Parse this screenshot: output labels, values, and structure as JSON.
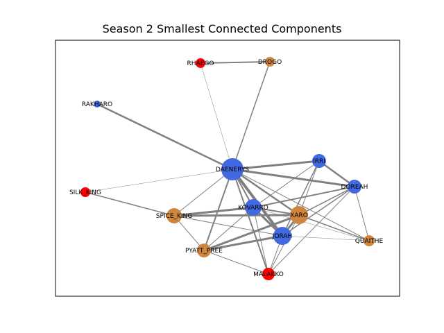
{
  "title": "Season 2 Smallest Connected Components",
  "colors": {
    "blue": "#4169e1",
    "orange": "#cd853f",
    "red": "#ff0000",
    "edge": "#808080",
    "frame": "#000000"
  },
  "chart_data": {
    "type": "network",
    "title": "Season 2 Smallest Connected Components",
    "nodes": [
      {
        "id": "DAENERYS",
        "label": "DAENERYS",
        "group": "blue",
        "size": 16
      },
      {
        "id": "RHAEGO",
        "label": "RHAEGO",
        "group": "red",
        "size": 7
      },
      {
        "id": "DROGO",
        "label": "DROGO",
        "group": "orange",
        "size": 7
      },
      {
        "id": "RAKHARO",
        "label": "RAKHARO",
        "group": "blue",
        "size": 5
      },
      {
        "id": "IRRI",
        "label": "IRRI",
        "group": "blue",
        "size": 10
      },
      {
        "id": "DOREAH",
        "label": "DOREAH",
        "group": "blue",
        "size": 10
      },
      {
        "id": "SILK_KING",
        "label": "SILK_KING",
        "group": "red",
        "size": 7
      },
      {
        "id": "KOVARRO",
        "label": "KOVARRO",
        "group": "blue",
        "size": 12
      },
      {
        "id": "XARO",
        "label": "XARO",
        "group": "orange",
        "size": 13
      },
      {
        "id": "SPICE_KING",
        "label": "SPICE_KING",
        "group": "orange",
        "size": 11
      },
      {
        "id": "JORAH",
        "label": "JORAH",
        "group": "blue",
        "size": 13
      },
      {
        "id": "QUAITHE",
        "label": "QUAITHE",
        "group": "orange",
        "size": 8
      },
      {
        "id": "PYATT_PREE",
        "label": "PYATT_PREE",
        "group": "orange",
        "size": 10
      },
      {
        "id": "MALAKKO",
        "label": "MALAKKO",
        "group": "red",
        "size": 9
      }
    ],
    "edges": [
      {
        "source": "RHAEGO",
        "target": "DROGO",
        "weight": 2
      },
      {
        "source": "RHAEGO",
        "target": "DAENERYS",
        "weight": 0.5
      },
      {
        "source": "DROGO",
        "target": "DAENERYS",
        "weight": 1.5
      },
      {
        "source": "RAKHARO",
        "target": "DAENERYS",
        "weight": 2.5
      },
      {
        "source": "SILK_KING",
        "target": "DAENERYS",
        "weight": 0.5
      },
      {
        "source": "SILK_KING",
        "target": "SPICE_KING",
        "weight": 1.5
      },
      {
        "source": "DAENERYS",
        "target": "IRRI",
        "weight": 3
      },
      {
        "source": "DAENERYS",
        "target": "DOREAH",
        "weight": 3
      },
      {
        "source": "DAENERYS",
        "target": "KOVARRO",
        "weight": 2
      },
      {
        "source": "DAENERYS",
        "target": "XARO",
        "weight": 2.5
      },
      {
        "source": "DAENERYS",
        "target": "JORAH",
        "weight": 4
      },
      {
        "source": "DAENERYS",
        "target": "SPICE_KING",
        "weight": 1
      },
      {
        "source": "DAENERYS",
        "target": "PYATT_PREE",
        "weight": 2
      },
      {
        "source": "DAENERYS",
        "target": "MALAKKO",
        "weight": 2
      },
      {
        "source": "DAENERYS",
        "target": "QUAITHE",
        "weight": 1
      },
      {
        "source": "IRRI",
        "target": "DOREAH",
        "weight": 2.5
      },
      {
        "source": "IRRI",
        "target": "KOVARRO",
        "weight": 1
      },
      {
        "source": "IRRI",
        "target": "JORAH",
        "weight": 1.5
      },
      {
        "source": "IRRI",
        "target": "XARO",
        "weight": 1
      },
      {
        "source": "DOREAH",
        "target": "KOVARRO",
        "weight": 2
      },
      {
        "source": "DOREAH",
        "target": "XARO",
        "weight": 1.5
      },
      {
        "source": "DOREAH",
        "target": "JORAH",
        "weight": 1.5
      },
      {
        "source": "DOREAH",
        "target": "QUAITHE",
        "weight": 1
      },
      {
        "source": "DOREAH",
        "target": "MALAKKO",
        "weight": 1
      },
      {
        "source": "KOVARRO",
        "target": "XARO",
        "weight": 2
      },
      {
        "source": "KOVARRO",
        "target": "SPICE_KING",
        "weight": 3
      },
      {
        "source": "KOVARRO",
        "target": "JORAH",
        "weight": 3
      },
      {
        "source": "KOVARRO",
        "target": "PYATT_PREE",
        "weight": 1
      },
      {
        "source": "KOVARRO",
        "target": "MALAKKO",
        "weight": 1
      },
      {
        "source": "KOVARRO",
        "target": "QUAITHE",
        "weight": 0.5
      },
      {
        "source": "XARO",
        "target": "SPICE_KING",
        "weight": 3
      },
      {
        "source": "XARO",
        "target": "JORAH",
        "weight": 3
      },
      {
        "source": "XARO",
        "target": "PYATT_PREE",
        "weight": 3
      },
      {
        "source": "XARO",
        "target": "QUAITHE",
        "weight": 1.5
      },
      {
        "source": "XARO",
        "target": "MALAKKO",
        "weight": 1
      },
      {
        "source": "SPICE_KING",
        "target": "JORAH",
        "weight": 1
      },
      {
        "source": "SPICE_KING",
        "target": "PYATT_PREE",
        "weight": 1
      },
      {
        "source": "JORAH",
        "target": "PYATT_PREE",
        "weight": 3
      },
      {
        "source": "JORAH",
        "target": "QUAITHE",
        "weight": 0.5
      },
      {
        "source": "JORAH",
        "target": "MALAKKO",
        "weight": 1
      },
      {
        "source": "PYATT_PREE",
        "target": "MALAKKO",
        "weight": 1
      }
    ]
  }
}
